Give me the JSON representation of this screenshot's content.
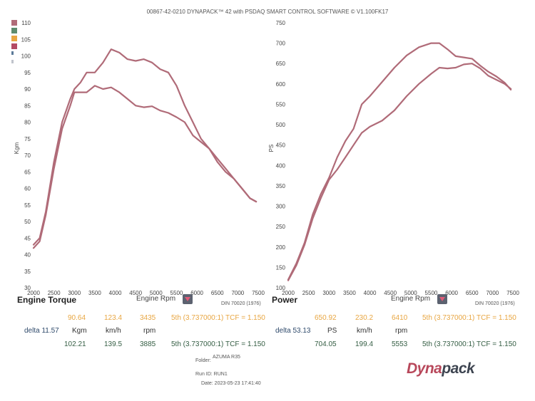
{
  "header": {
    "title": "00867-42-0210 DYNAPACK™ 42 with PSDAQ SMART CONTROL SOFTWARE © V1.100FK17"
  },
  "legend_swatches": [
    "#b06b78",
    "#5d8c6e",
    "#e8a642",
    "#b44a63",
    "#5c7a99",
    "#c0c4cc"
  ],
  "chart_data": [
    {
      "type": "line",
      "ylabel": "Kgm",
      "xlabel": "",
      "xlim": [
        2000,
        7500
      ],
      "ylim": [
        30,
        110
      ],
      "xticks": [
        2000,
        2500,
        3000,
        3500,
        4000,
        4500,
        5000,
        5500,
        6000,
        6500,
        7000,
        7500
      ],
      "yticks": [
        30,
        35,
        40,
        45,
        50,
        55,
        60,
        65,
        70,
        75,
        80,
        85,
        90,
        95,
        100,
        105,
        110
      ],
      "series": [
        {
          "color": "#b06b78",
          "x": [
            2000,
            2150,
            2300,
            2500,
            2700,
            2900,
            3000,
            3150,
            3300,
            3500,
            3700,
            3900,
            4100,
            4300,
            4500,
            4700,
            4900,
            5100,
            5300,
            5500,
            5700,
            5900,
            6100,
            6300,
            6500,
            6700,
            6900,
            7100,
            7300,
            7450
          ],
          "y": [
            43,
            45,
            53,
            68,
            80,
            87,
            90,
            92,
            95,
            95,
            98,
            102,
            101,
            99,
            98.5,
            99,
            98,
            96,
            95,
            91,
            85,
            80,
            75,
            72,
            68,
            65,
            63,
            60,
            57,
            56
          ]
        },
        {
          "color": "#b06b78",
          "x": [
            2000,
            2150,
            2300,
            2500,
            2700,
            2900,
            3000,
            3150,
            3300,
            3500,
            3700,
            3900,
            4100,
            4300,
            4500,
            4700,
            4900,
            5100,
            5300,
            5500,
            5700,
            5900,
            6100,
            6300,
            6500,
            6700,
            6900,
            7100,
            7300,
            7450
          ],
          "y": [
            42,
            44,
            52,
            66,
            78,
            85,
            89,
            89,
            89,
            91,
            90,
            90.5,
            89,
            87,
            85,
            84.5,
            84.8,
            83.5,
            82.8,
            81.5,
            80,
            76,
            74,
            72,
            69,
            66,
            63,
            60,
            57,
            56
          ]
        }
      ]
    },
    {
      "type": "line",
      "ylabel": "PS",
      "xlabel": "",
      "xlim": [
        2000,
        7500
      ],
      "ylim": [
        100,
        750
      ],
      "xticks": [
        2000,
        2500,
        3000,
        3500,
        4000,
        4500,
        5000,
        5500,
        6000,
        6500,
        7000,
        7500
      ],
      "yticks": [
        100,
        150,
        200,
        250,
        300,
        350,
        400,
        450,
        500,
        550,
        600,
        650,
        700,
        750
      ],
      "series": [
        {
          "color": "#b06b78",
          "x": [
            2000,
            2200,
            2400,
            2600,
            2800,
            3000,
            3200,
            3400,
            3600,
            3800,
            4000,
            4300,
            4600,
            4900,
            5200,
            5500,
            5700,
            5900,
            6100,
            6300,
            6500,
            6700,
            6900,
            7100,
            7300,
            7450
          ],
          "y": [
            120,
            160,
            210,
            280,
            330,
            370,
            420,
            460,
            490,
            550,
            570,
            605,
            640,
            670,
            690,
            700,
            700,
            685,
            668,
            665,
            662,
            645,
            630,
            618,
            603,
            586
          ]
        },
        {
          "color": "#b06b78",
          "x": [
            2000,
            2200,
            2400,
            2600,
            2800,
            3000,
            3200,
            3400,
            3600,
            3800,
            4000,
            4300,
            4600,
            4900,
            5200,
            5500,
            5700,
            5900,
            6100,
            6300,
            6500,
            6700,
            6900,
            7100,
            7300,
            7450
          ],
          "y": [
            118,
            155,
            205,
            270,
            320,
            365,
            390,
            420,
            450,
            480,
            495,
            510,
            535,
            570,
            600,
            625,
            640,
            638,
            640,
            648,
            650,
            638,
            620,
            610,
            600,
            588
          ]
        }
      ]
    }
  ],
  "torque_panel": {
    "title": "Engine Torque",
    "rpm_label": "Engine Rpm",
    "din": "DIN 70020 (1976)",
    "row1": {
      "value": "90.64",
      "speed": "123.4",
      "rpm": "3435",
      "gear": "5th (3.737000:1) TCF = 1.150"
    },
    "row2": {
      "delta": "delta 11.57",
      "unit": "Kgm",
      "speed_unit": "km/h",
      "rpm_unit": "rpm"
    },
    "row3": {
      "value": "102.21",
      "speed": "139.5",
      "rpm": "3885",
      "gear": "5th (3.737000:1) TCF = 1.150"
    }
  },
  "power_panel": {
    "title": "Power",
    "rpm_label": "Engine Rpm",
    "din": "DIN 70020 (1976)",
    "row1": {
      "value": "650.92",
      "speed": "230.2",
      "rpm": "6410",
      "gear": "5th (3.737000:1) TCF = 1.150"
    },
    "row2": {
      "delta": "delta 53.13",
      "unit": "PS",
      "speed_unit": "km/h",
      "rpm_unit": "rpm"
    },
    "row3": {
      "value": "704.05",
      "speed": "199.4",
      "rpm": "5553",
      "gear": "5th (3.737000:1) TCF = 1.150"
    }
  },
  "footer": {
    "folder": "Folder:",
    "folder_name": "AZUMA R35",
    "run_id": "Run ID: RUN1",
    "date": "Date: 2023-05-23 17:41:40"
  },
  "logo": {
    "part1": "Dyna",
    "part2": "pack"
  }
}
